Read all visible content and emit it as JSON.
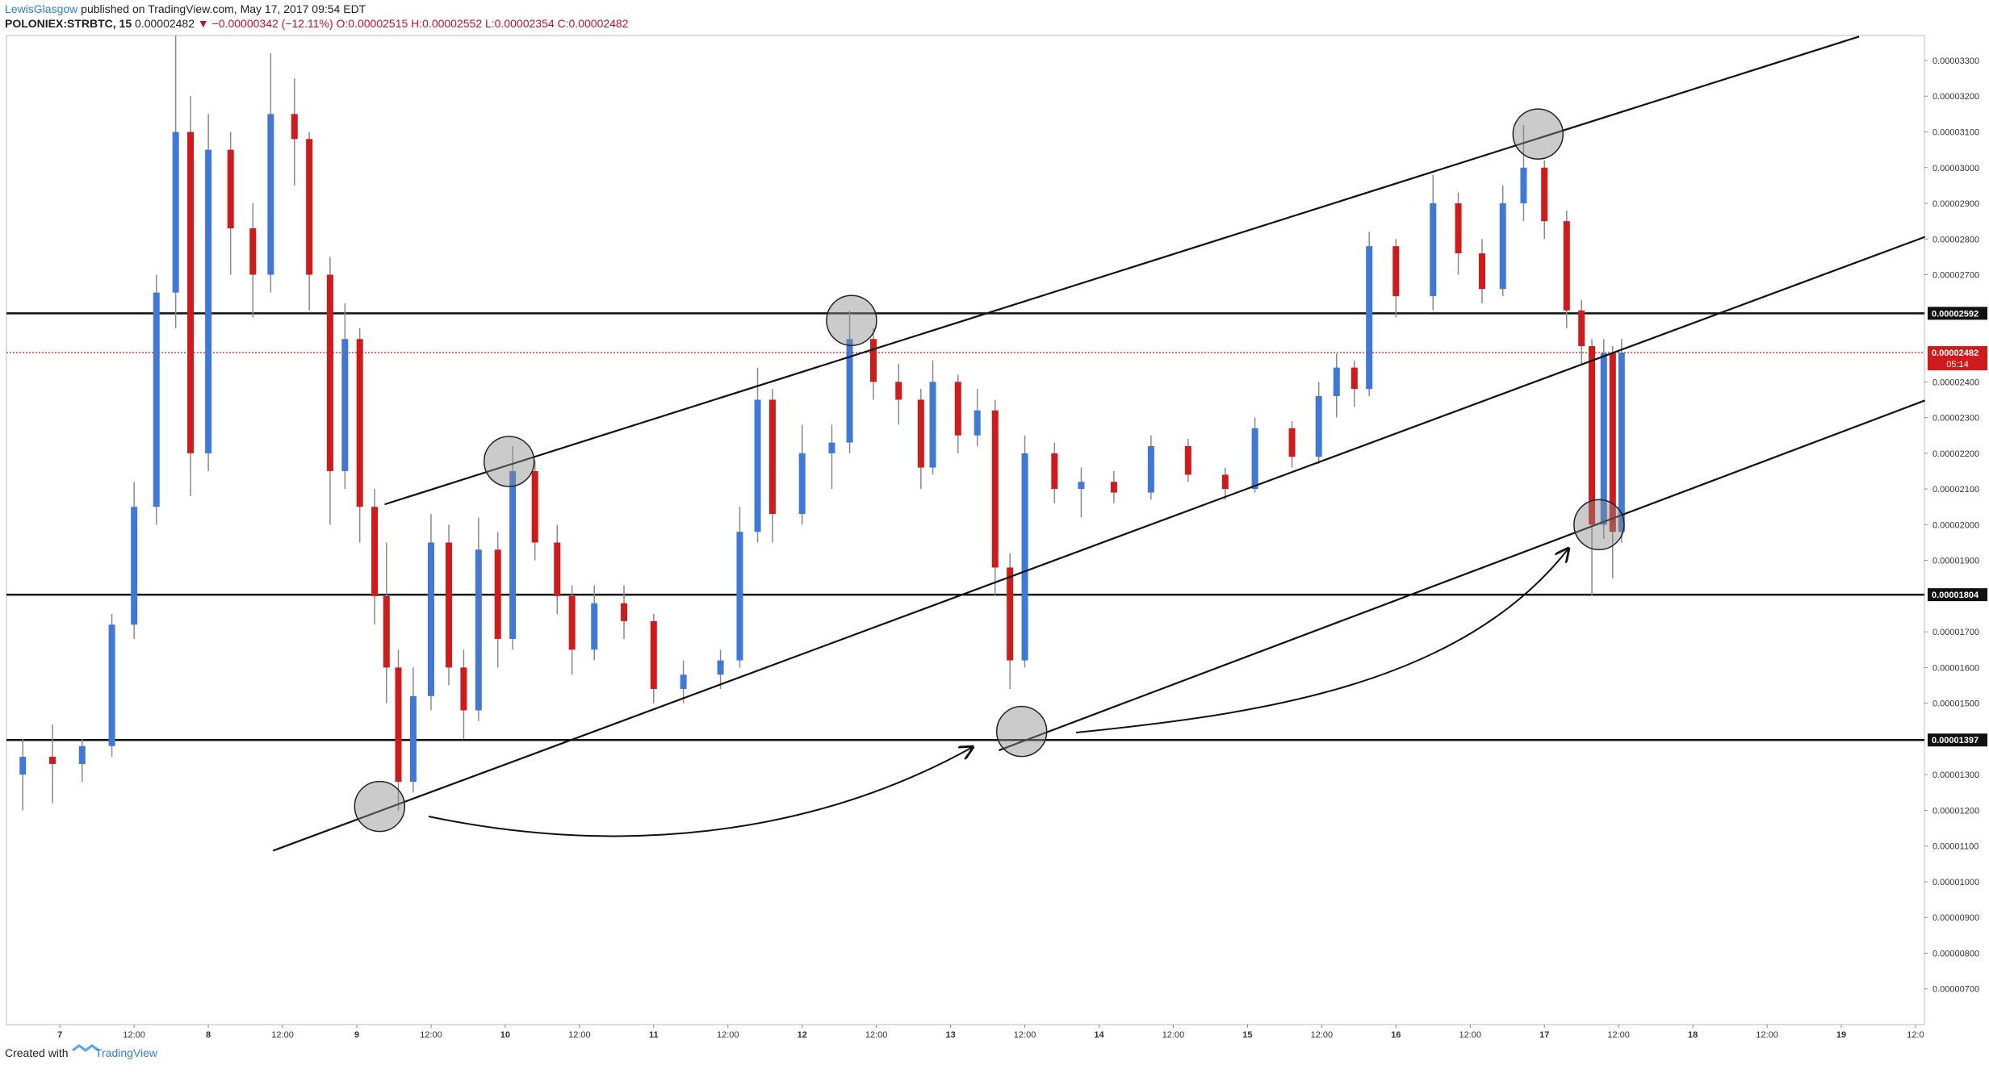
{
  "header": {
    "author": "LewisGlasgow",
    "published": "published on TradingView.com, May 17, 2017 09:54 EDT",
    "symbol": "POLONIEX:STRBTC, 15",
    "last": "0.00002482",
    "change": "▼ −0.00000342 (−12.11%)",
    "ohlc_text": "O:0.00002515 H:0.00002552 L:0.00002354 C:0.00002482"
  },
  "footer": {
    "created": "Created with",
    "brand": "TradingView"
  },
  "chart_data": {
    "type": "candlestick",
    "xlim": [
      6.64,
      19.56
    ],
    "ylim": [
      6e-06,
      3.37e-05
    ],
    "xticks": [
      7,
      {
        "value": 7.5,
        "label": "12:00"
      },
      8,
      {
        "value": 8.5,
        "label": "12:00"
      },
      9,
      {
        "value": 9.5,
        "label": "12:00"
      },
      10,
      {
        "value": 10.5,
        "label": "12:00"
      },
      11,
      {
        "value": 11.5,
        "label": "12:00"
      },
      12,
      {
        "value": 12.5,
        "label": "12:00"
      },
      13,
      {
        "value": 13.5,
        "label": "12:00"
      },
      14,
      {
        "value": 14.5,
        "label": "12:00"
      },
      15,
      {
        "value": 15.5,
        "label": "12:00"
      },
      16,
      {
        "value": 16.5,
        "label": "12:00"
      },
      17,
      {
        "value": 17.5,
        "label": "12:00"
      },
      18,
      {
        "value": 18.5,
        "label": "12:00"
      },
      19,
      {
        "value": 19.5,
        "label": "12:0"
      }
    ],
    "yticks": [
      {
        "value": 7e-06,
        "label": "0.00000700"
      },
      {
        "value": 8e-06,
        "label": "0.00000800"
      },
      {
        "value": 9e-06,
        "label": "0.00000900"
      },
      {
        "value": 1e-05,
        "label": "0.00001000"
      },
      {
        "value": 1.1e-05,
        "label": "0.00001100"
      },
      {
        "value": 1.2e-05,
        "label": "0.00001200"
      },
      {
        "value": 1.3e-05,
        "label": "0.00001300"
      },
      {
        "value": 1.5e-05,
        "label": "0.00001500"
      },
      {
        "value": 1.6e-05,
        "label": "0.00001600"
      },
      {
        "value": 1.7e-05,
        "label": "0.00001700"
      },
      {
        "value": 1.9e-05,
        "label": "0.00001900"
      },
      {
        "value": 2e-05,
        "label": "0.00002000"
      },
      {
        "value": 2.1e-05,
        "label": "0.00002100"
      },
      {
        "value": 2.2e-05,
        "label": "0.00002200"
      },
      {
        "value": 2.3e-05,
        "label": "0.00002300"
      },
      {
        "value": 2.4e-05,
        "label": "0.00002400"
      },
      {
        "value": 2.7e-05,
        "label": "0.00002700"
      },
      {
        "value": 2.8e-05,
        "label": "0.00002800"
      },
      {
        "value": 2.9e-05,
        "label": "0.00002900"
      },
      {
        "value": 3e-05,
        "label": "0.00003000"
      },
      {
        "value": 3.1e-05,
        "label": "0.00003100"
      },
      {
        "value": 3.2e-05,
        "label": "0.00003200"
      },
      {
        "value": 3.3e-05,
        "label": "0.00003300"
      }
    ],
    "up_color": "#3f78d6",
    "down_color": "#d11a1a",
    "wick_color": "#8a8a8a",
    "x": [
      6.75,
      6.95,
      7.15,
      7.35,
      7.5,
      7.65,
      7.78,
      7.88,
      8.0,
      8.15,
      8.3,
      8.42,
      8.58,
      8.68,
      8.82,
      8.92,
      9.02,
      9.12,
      9.2,
      9.28,
      9.38,
      9.5,
      9.62,
      9.72,
      9.82,
      9.95,
      10.05,
      10.2,
      10.35,
      10.45,
      10.6,
      10.8,
      11.0,
      11.2,
      11.45,
      11.58,
      11.7,
      11.8,
      12.0,
      12.2,
      12.32,
      12.48,
      12.65,
      12.8,
      12.88,
      13.05,
      13.18,
      13.3,
      13.4,
      13.5,
      13.7,
      13.88,
      14.1,
      14.35,
      14.6,
      14.85,
      15.05,
      15.3,
      15.48,
      15.6,
      15.72,
      15.82,
      16.0,
      16.25,
      16.42,
      16.58,
      16.72,
      16.86,
      17.0,
      17.15,
      17.25,
      17.32,
      17.4,
      17.46,
      17.52
    ],
    "ohlc": [
      [
        1.3e-05,
        1.4e-05,
        1.2e-05,
        1.35e-05
      ],
      [
        1.35e-05,
        1.44e-05,
        1.22e-05,
        1.33e-05
      ],
      [
        1.33e-05,
        1.4e-05,
        1.28e-05,
        1.38e-05
      ],
      [
        1.38e-05,
        1.75e-05,
        1.35e-05,
        1.72e-05
      ],
      [
        1.72e-05,
        2.12e-05,
        1.68e-05,
        2.05e-05
      ],
      [
        2.05e-05,
        2.7e-05,
        2e-05,
        2.65e-05
      ],
      [
        2.65e-05,
        3.37e-05,
        2.55e-05,
        3.1e-05
      ],
      [
        3.1e-05,
        3.2e-05,
        2.08e-05,
        2.2e-05
      ],
      [
        2.2e-05,
        3.15e-05,
        2.15e-05,
        3.05e-05
      ],
      [
        3.05e-05,
        3.1e-05,
        2.7e-05,
        2.83e-05
      ],
      [
        2.83e-05,
        2.9e-05,
        2.58e-05,
        2.7e-05
      ],
      [
        2.7e-05,
        3.32e-05,
        2.65e-05,
        3.15e-05
      ],
      [
        3.15e-05,
        3.25e-05,
        2.95e-05,
        3.08e-05
      ],
      [
        3.08e-05,
        3.1e-05,
        2.6e-05,
        2.7e-05
      ],
      [
        2.7e-05,
        2.75e-05,
        2e-05,
        2.15e-05
      ],
      [
        2.15e-05,
        2.62e-05,
        2.1e-05,
        2.52e-05
      ],
      [
        2.52e-05,
        2.55e-05,
        1.95e-05,
        2.05e-05
      ],
      [
        2.05e-05,
        2.1e-05,
        1.72e-05,
        1.8e-05
      ],
      [
        1.8e-05,
        1.95e-05,
        1.5e-05,
        1.6e-05
      ],
      [
        1.6e-05,
        1.65e-05,
        1.2e-05,
        1.28e-05
      ],
      [
        1.28e-05,
        1.6e-05,
        1.25e-05,
        1.52e-05
      ],
      [
        1.52e-05,
        2.03e-05,
        1.48e-05,
        1.95e-05
      ],
      [
        1.95e-05,
        2e-05,
        1.55e-05,
        1.6e-05
      ],
      [
        1.6e-05,
        1.65e-05,
        1.4e-05,
        1.48e-05
      ],
      [
        1.48e-05,
        2.02e-05,
        1.45e-05,
        1.93e-05
      ],
      [
        1.93e-05,
        1.98e-05,
        1.6e-05,
        1.68e-05
      ],
      [
        1.68e-05,
        2.22e-05,
        1.65e-05,
        2.15e-05
      ],
      [
        2.15e-05,
        2.18e-05,
        1.9e-05,
        1.95e-05
      ],
      [
        1.95e-05,
        2e-05,
        1.75e-05,
        1.8e-05
      ],
      [
        1.8e-05,
        1.83e-05,
        1.58e-05,
        1.65e-05
      ],
      [
        1.65e-05,
        1.83e-05,
        1.62e-05,
        1.78e-05
      ],
      [
        1.78e-05,
        1.83e-05,
        1.68e-05,
        1.73e-05
      ],
      [
        1.73e-05,
        1.75e-05,
        1.5e-05,
        1.54e-05
      ],
      [
        1.54e-05,
        1.62e-05,
        1.5e-05,
        1.58e-05
      ],
      [
        1.58e-05,
        1.65e-05,
        1.54e-05,
        1.62e-05
      ],
      [
        1.62e-05,
        2.05e-05,
        1.6e-05,
        1.98e-05
      ],
      [
        1.98e-05,
        2.44e-05,
        1.95e-05,
        2.35e-05
      ],
      [
        2.35e-05,
        2.38e-05,
        1.95e-05,
        2.03e-05
      ],
      [
        2.03e-05,
        2.28e-05,
        2e-05,
        2.2e-05
      ],
      [
        2.2e-05,
        2.28e-05,
        2.1e-05,
        2.23e-05
      ],
      [
        2.23e-05,
        2.6e-05,
        2.2e-05,
        2.52e-05
      ],
      [
        2.52e-05,
        2.55e-05,
        2.35e-05,
        2.4e-05
      ],
      [
        2.4e-05,
        2.45e-05,
        2.28e-05,
        2.35e-05
      ],
      [
        2.35e-05,
        2.38e-05,
        2.1e-05,
        2.16e-05
      ],
      [
        2.16e-05,
        2.46e-05,
        2.14e-05,
        2.4e-05
      ],
      [
        2.4e-05,
        2.42e-05,
        2.2e-05,
        2.25e-05
      ],
      [
        2.25e-05,
        2.38e-05,
        2.22e-05,
        2.32e-05
      ],
      [
        2.32e-05,
        2.35e-05,
        1.8e-05,
        1.88e-05
      ],
      [
        1.88e-05,
        1.92e-05,
        1.54e-05,
        1.62e-05
      ],
      [
        1.62e-05,
        2.25e-05,
        1.6e-05,
        2.2e-05
      ],
      [
        2.2e-05,
        2.23e-05,
        2.06e-05,
        2.1e-05
      ],
      [
        2.1e-05,
        2.16e-05,
        2.02e-05,
        2.12e-05
      ],
      [
        2.12e-05,
        2.15e-05,
        2.06e-05,
        2.09e-05
      ],
      [
        2.09e-05,
        2.25e-05,
        2.07e-05,
        2.22e-05
      ],
      [
        2.22e-05,
        2.24e-05,
        2.12e-05,
        2.14e-05
      ],
      [
        2.14e-05,
        2.16e-05,
        2.07e-05,
        2.1e-05
      ],
      [
        2.1e-05,
        2.3e-05,
        2.09e-05,
        2.27e-05
      ],
      [
        2.27e-05,
        2.29e-05,
        2.16e-05,
        2.19e-05
      ],
      [
        2.19e-05,
        2.4e-05,
        2.17e-05,
        2.36e-05
      ],
      [
        2.36e-05,
        2.48e-05,
        2.3e-05,
        2.44e-05
      ],
      [
        2.44e-05,
        2.46e-05,
        2.33e-05,
        2.38e-05
      ],
      [
        2.38e-05,
        2.82e-05,
        2.36e-05,
        2.78e-05
      ],
      [
        2.78e-05,
        2.8e-05,
        2.58e-05,
        2.64e-05
      ],
      [
        2.64e-05,
        2.98e-05,
        2.6e-05,
        2.9e-05
      ],
      [
        2.9e-05,
        2.93e-05,
        2.7e-05,
        2.76e-05
      ],
      [
        2.76e-05,
        2.8e-05,
        2.62e-05,
        2.66e-05
      ],
      [
        2.66e-05,
        2.95e-05,
        2.64e-05,
        2.9e-05
      ],
      [
        2.9e-05,
        3.12e-05,
        2.85e-05,
        3e-05
      ],
      [
        3e-05,
        3.02e-05,
        2.8e-05,
        2.85e-05
      ],
      [
        2.85e-05,
        2.88e-05,
        2.55e-05,
        2.6e-05
      ],
      [
        2.6e-05,
        2.63e-05,
        2.45e-05,
        2.5e-05
      ],
      [
        2.5e-05,
        2.52e-05,
        1.8e-05,
        2e-05
      ],
      [
        2e-05,
        2.52e-05,
        1.96e-05,
        2.48e-05
      ],
      [
        2.48e-05,
        2.5e-05,
        1.85e-05,
        1.98e-05
      ],
      [
        1.98e-05,
        2.52e-05,
        1.95e-05,
        2.482e-05
      ]
    ],
    "hlines": [
      {
        "value": 2.592e-05,
        "label": "0.00002592"
      },
      {
        "value": 1.804e-05,
        "label": "0.00001804"
      },
      {
        "value": 1.397e-05,
        "label": "0.00001397"
      }
    ],
    "last_price": {
      "value": 2.482e-05,
      "label": "0.00002482"
    },
    "countdown": "05:14",
    "trendlines": [
      {
        "x": [
          9.188,
          19.12
        ],
        "y": [
          2.057e-05,
          3.367e-05
        ]
      },
      {
        "x": [
          8.436,
          19.564
        ],
        "y": [
          1.087e-05,
          2.806e-05
        ]
      },
      {
        "x": [
          13.325,
          19.564
        ],
        "y": [
          1.368e-05,
          2.348e-05
        ]
      }
    ],
    "highlights": {
      "x": [
        9.154,
        10.026,
        12.333,
        13.479,
        16.957,
        17.368
      ],
      "y": [
        1.211e-05,
        2.177e-05,
        2.572e-05,
        1.421e-05,
        3.094e-05,
        2e-05
      ]
    }
  }
}
